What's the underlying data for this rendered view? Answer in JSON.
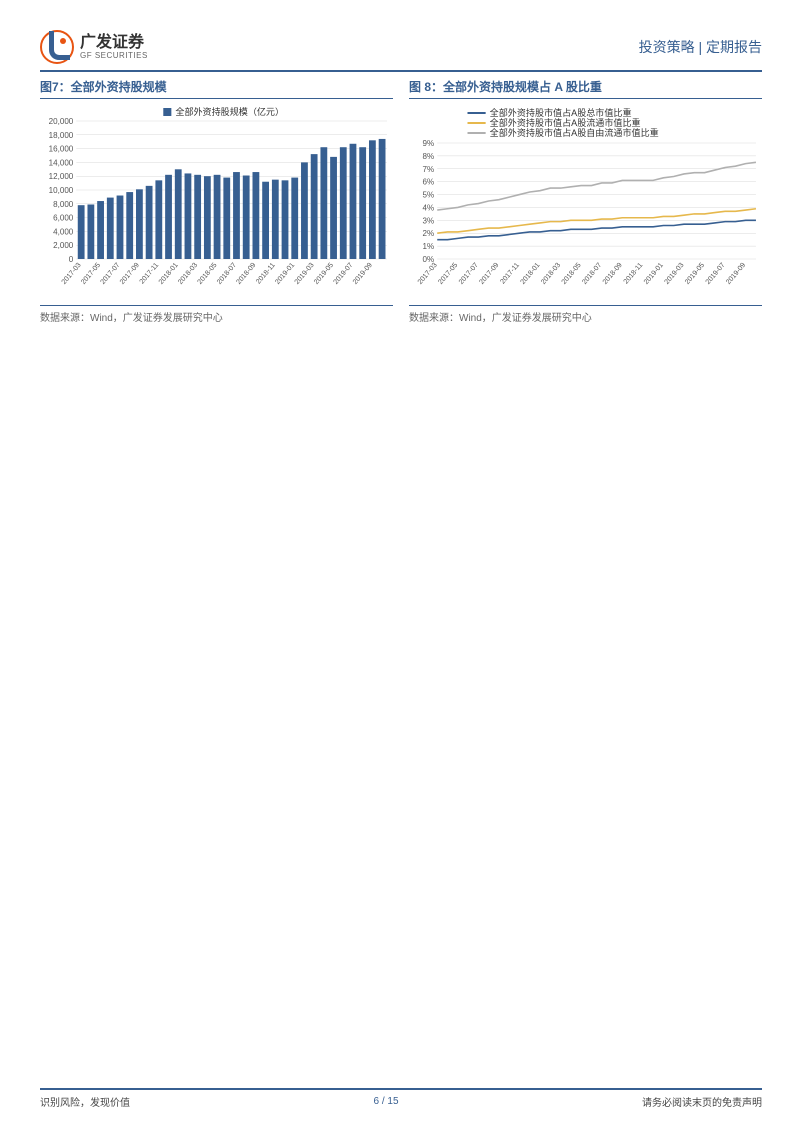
{
  "header": {
    "logo_cn": "广发证券",
    "logo_en": "GF SECURITIES",
    "right": "投资策略 | 定期报告"
  },
  "chart7": {
    "type": "bar",
    "title": "图7：全部外资持股规模",
    "legend": "全部外资持股规模（亿元）",
    "legend_color": "#375f91",
    "categories": [
      "2017-03",
      "2017-05",
      "2017-07",
      "2017-09",
      "2017-11",
      "2018-01",
      "2018-03",
      "2018-05",
      "2018-07",
      "2018-09",
      "2018-11",
      "2019-01",
      "2019-03",
      "2019-05",
      "2019-07",
      "2019-09"
    ],
    "hidden_between": true,
    "all_categories": [
      "2017-03",
      "2017-04",
      "2017-05",
      "2017-06",
      "2017-07",
      "2017-08",
      "2017-09",
      "2017-10",
      "2017-11",
      "2017-12",
      "2018-01",
      "2018-02",
      "2018-03",
      "2018-04",
      "2018-05",
      "2018-06",
      "2018-07",
      "2018-08",
      "2018-09",
      "2018-10",
      "2018-11",
      "2018-12",
      "2019-01",
      "2019-02",
      "2019-03",
      "2019-04",
      "2019-05",
      "2019-06",
      "2019-07",
      "2019-08",
      "2019-09",
      "2019-10"
    ],
    "values": [
      7800,
      7900,
      8400,
      8900,
      9200,
      9700,
      10100,
      10600,
      11400,
      12200,
      13000,
      12400,
      12200,
      12000,
      12200,
      11800,
      12600,
      12100,
      12600,
      11200,
      11500,
      11400,
      11800,
      14000,
      15200,
      16200,
      14800,
      16200,
      16700,
      16200,
      17200,
      17400
    ],
    "bar_color": "#375f91",
    "ylim": [
      0,
      20000
    ],
    "ytick_step": 2000,
    "yticks_labels": [
      "0",
      "2,000",
      "4,000",
      "6,000",
      "8,000",
      "10,000",
      "12,000",
      "14,000",
      "16,000",
      "18,000",
      "20,000"
    ],
    "grid_color": "#d9d9d9",
    "background_color": "#ffffff",
    "source": "数据来源：Wind，广发证券发展研究中心"
  },
  "chart8": {
    "type": "line",
    "title": "图 8：全部外资持股规模占 A 股比重",
    "categories": [
      "2017-03",
      "2017-05",
      "2017-07",
      "2017-09",
      "2017-11",
      "2018-01",
      "2018-03",
      "2018-05",
      "2018-07",
      "2018-09",
      "2018-11",
      "2019-01",
      "2019-03",
      "2019-05",
      "2019-07",
      "2019-09"
    ],
    "all_categories": [
      "2017-03",
      "2017-04",
      "2017-05",
      "2017-06",
      "2017-07",
      "2017-08",
      "2017-09",
      "2017-10",
      "2017-11",
      "2017-12",
      "2018-01",
      "2018-02",
      "2018-03",
      "2018-04",
      "2018-05",
      "2018-06",
      "2018-07",
      "2018-08",
      "2018-09",
      "2018-10",
      "2018-11",
      "2018-12",
      "2019-01",
      "2019-02",
      "2019-03",
      "2019-04",
      "2019-05",
      "2019-06",
      "2019-07",
      "2019-08",
      "2019-09",
      "2019-10"
    ],
    "series": [
      {
        "name": "全部外资持股市值占A股总市值比重",
        "color": "#375f91",
        "values": [
          1.5,
          1.5,
          1.6,
          1.7,
          1.7,
          1.8,
          1.8,
          1.9,
          2.0,
          2.1,
          2.1,
          2.2,
          2.2,
          2.3,
          2.3,
          2.3,
          2.4,
          2.4,
          2.5,
          2.5,
          2.5,
          2.5,
          2.6,
          2.6,
          2.7,
          2.7,
          2.7,
          2.8,
          2.9,
          2.9,
          3.0,
          3.0
        ]
      },
      {
        "name": "全部外资持股市值占A股流通市值比重",
        "color": "#e6b84c",
        "values": [
          2.0,
          2.1,
          2.1,
          2.2,
          2.3,
          2.4,
          2.4,
          2.5,
          2.6,
          2.7,
          2.8,
          2.9,
          2.9,
          3.0,
          3.0,
          3.0,
          3.1,
          3.1,
          3.2,
          3.2,
          3.2,
          3.2,
          3.3,
          3.3,
          3.4,
          3.5,
          3.5,
          3.6,
          3.7,
          3.7,
          3.8,
          3.9
        ]
      },
      {
        "name": "全部外资持股市值占A股自由流通市值比重",
        "color": "#b0b0b0",
        "values": [
          3.8,
          3.9,
          4.0,
          4.2,
          4.3,
          4.5,
          4.6,
          4.8,
          5.0,
          5.2,
          5.3,
          5.5,
          5.5,
          5.6,
          5.7,
          5.7,
          5.9,
          5.9,
          6.1,
          6.1,
          6.1,
          6.1,
          6.3,
          6.4,
          6.6,
          6.7,
          6.7,
          6.9,
          7.1,
          7.2,
          7.4,
          7.5
        ]
      }
    ],
    "ylim": [
      0,
      9
    ],
    "ytick_step": 1,
    "yticks_labels": [
      "0%",
      "1%",
      "2%",
      "3%",
      "4%",
      "5%",
      "6%",
      "7%",
      "8%",
      "9%"
    ],
    "grid_color": "#d9d9d9",
    "background_color": "#ffffff",
    "source": "数据来源：Wind，广发证券发展研究中心"
  },
  "footer": {
    "left": "识别风险，发现价值",
    "right": "请务必阅读末页的免责声明",
    "page": "6 / 15"
  }
}
